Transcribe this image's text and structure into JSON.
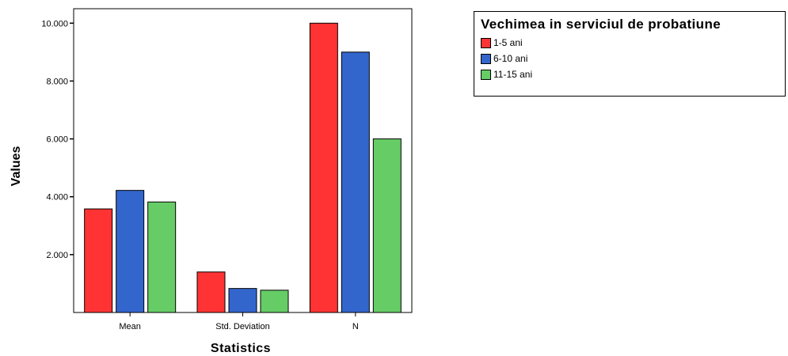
{
  "chart_data": {
    "type": "bar",
    "title": "",
    "xlabel": "Statistics",
    "ylabel": "Values",
    "categories": [
      "Mean",
      "Std. Deviation",
      "N"
    ],
    "series": [
      {
        "name": "1-5 ani",
        "color": "#ff3333",
        "values": [
          3.58,
          1.4,
          10.0
        ]
      },
      {
        "name": "6-10 ani",
        "color": "#3366cc",
        "values": [
          4.22,
          0.83,
          9.0
        ]
      },
      {
        "name": "11-15 ani",
        "color": "#66cc66",
        "values": [
          3.82,
          0.77,
          6.0
        ]
      }
    ],
    "yticks": [
      2,
      4,
      6,
      8,
      10
    ],
    "ytick_labels": [
      "2.000",
      "4.000",
      "6.000",
      "8.000",
      "10.000"
    ],
    "ylim": [
      0,
      10.5
    ],
    "grid": false,
    "legend": {
      "title": "Vechimea in serviciul de probatiune",
      "position": "top-right"
    }
  }
}
